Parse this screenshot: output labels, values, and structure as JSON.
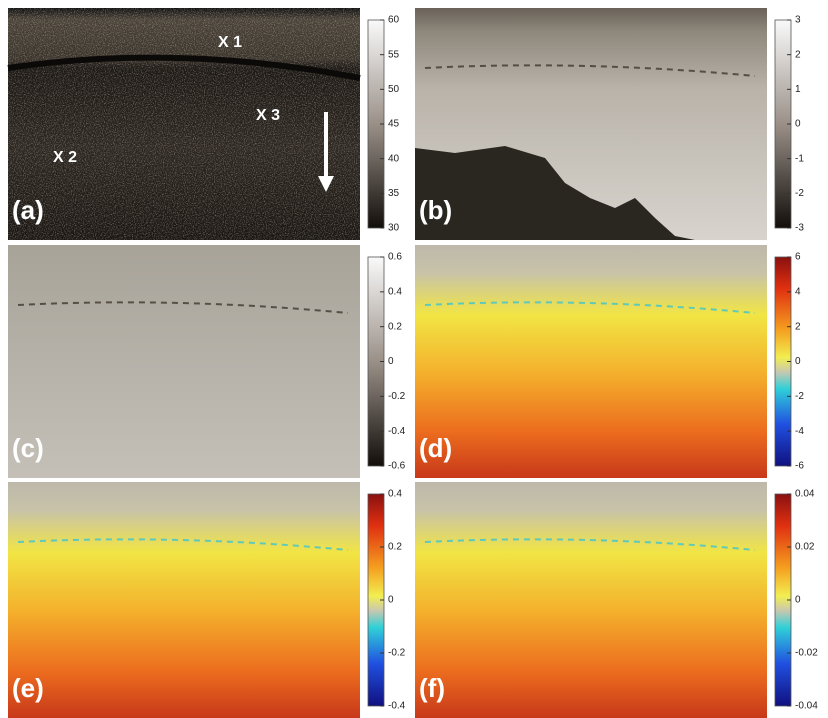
{
  "panels": [
    {
      "label": "(a)",
      "annotations": [
        "X 1",
        "X 2",
        "X 3"
      ],
      "colorbar": {
        "lim": [
          30,
          60
        ],
        "ticks": [
          30,
          35,
          40,
          45,
          50,
          55,
          60
        ]
      }
    },
    {
      "label": "(b)",
      "colorbar": {
        "lim": [
          -3,
          3
        ],
        "ticks": [
          -3,
          -2,
          -1,
          0,
          1,
          2,
          3
        ]
      }
    },
    {
      "label": "(c)",
      "colorbar": {
        "lim": [
          -0.6,
          0.6
        ],
        "ticks": [
          -0.6,
          -0.4,
          -0.2,
          0,
          0.2,
          0.4,
          0.6
        ]
      }
    },
    {
      "label": "(d)",
      "colorbar": {
        "lim": [
          -6,
          6
        ],
        "ticks": [
          -6,
          -4,
          -2,
          0,
          2,
          4,
          6
        ]
      }
    },
    {
      "label": "(e)",
      "colorbar": {
        "lim": [
          -0.4,
          0.4
        ],
        "ticks": [
          -0.4,
          -0.2,
          0,
          0.2,
          0.4
        ]
      }
    },
    {
      "label": "(f)",
      "colorbar": {
        "lim": [
          -0.04,
          0.04
        ],
        "ticks": [
          -0.04,
          -0.02,
          0,
          0.02,
          0.04
        ]
      }
    }
  ]
}
